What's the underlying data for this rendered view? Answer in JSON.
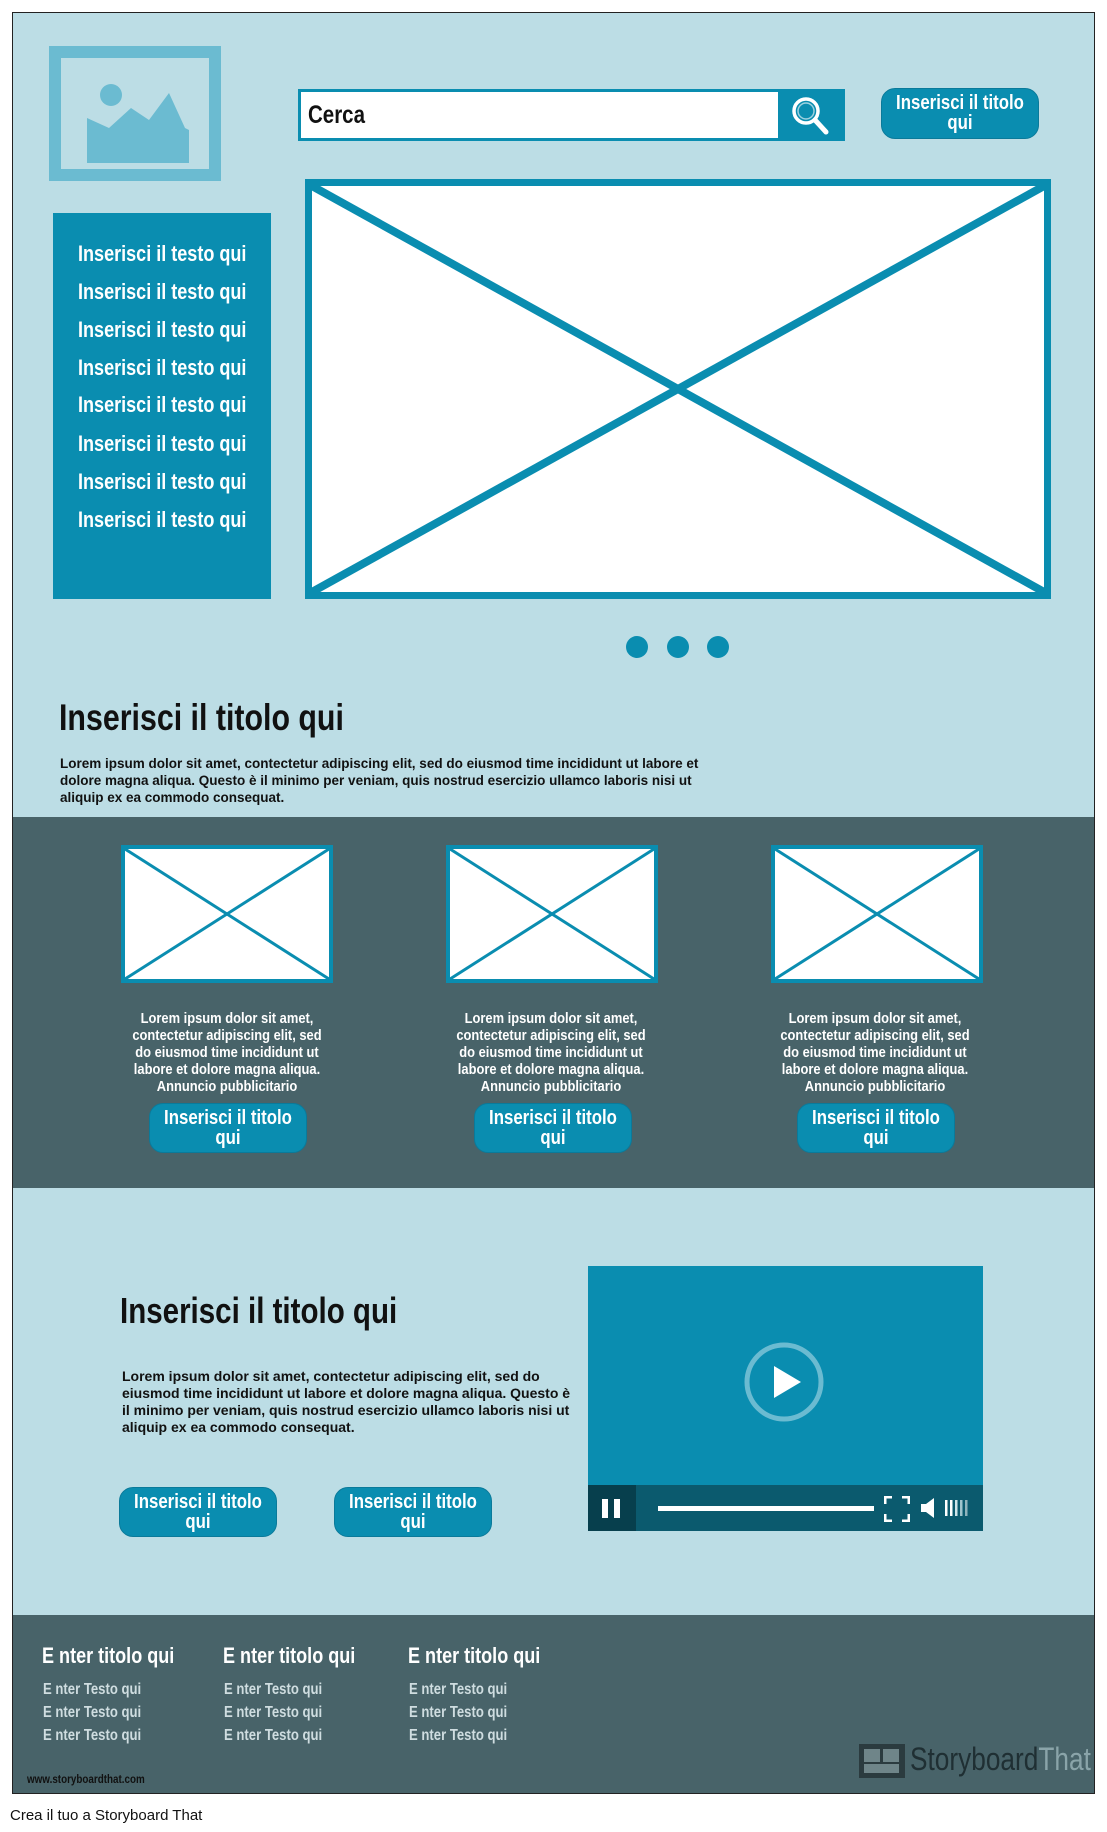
{
  "header": {
    "search_placeholder": "Cerca",
    "title_button": "Inserisci il titolo qui"
  },
  "sidebar": {
    "items": [
      "Inserisci il testo qui",
      "Inserisci il testo qui",
      "Inserisci il testo qui",
      "Inserisci il testo qui",
      "Inserisci il testo qui",
      "Inserisci il testo qui",
      "Inserisci il testo qui",
      "Inserisci il testo qui"
    ]
  },
  "carousel": {
    "dots": 3
  },
  "intro": {
    "title": "Inserisci il titolo qui",
    "text": "Lorem ipsum dolor sit amet, contectetur adipiscing elit, sed do eiusmod time incididunt ut labore et dolore magna aliqua. Questo è il minimo per veniam, quis nostrud esercizio ullamco laboris nisi ut aliquip ex ea commodo consequat."
  },
  "cards": [
    {
      "text": "Lorem ipsum dolor sit amet, contectetur adipiscing elit, sed do eiusmod time incididunt ut labore et dolore magna aliqua. Annuncio pubblicitario",
      "button": "Inserisci il titolo qui"
    },
    {
      "text": "Lorem ipsum dolor sit amet, contectetur adipiscing elit, sed do eiusmod time incididunt ut labore et dolore magna aliqua. Annuncio pubblicitario",
      "button": "Inserisci il titolo qui"
    },
    {
      "text": "Lorem ipsum dolor sit amet, contectetur adipiscing elit, sed do eiusmod time incididunt ut labore et dolore magna aliqua. Annuncio pubblicitario",
      "button": "Inserisci il titolo qui"
    }
  ],
  "feature": {
    "title": "Inserisci il titolo qui",
    "text": "Lorem ipsum dolor sit amet, contectetur adipiscing elit, sed do eiusmod time incididunt ut labore et dolore magna aliqua. Questo è il minimo per veniam, quis nostrud esercizio ullamco laboris nisi ut aliquip ex ea commodo consequat.",
    "button1": "Inserisci il titolo qui",
    "button2": "Inserisci il titolo qui"
  },
  "footer": {
    "columns": [
      {
        "title": "E nter titolo qui",
        "items": [
          "E nter Testo qui",
          "E nter Testo qui",
          "E nter Testo qui"
        ]
      },
      {
        "title": "E nter titolo qui",
        "items": [
          "E nter Testo qui",
          "E nter Testo qui",
          "E nter Testo qui"
        ]
      },
      {
        "title": "E nter titolo qui",
        "items": [
          "E nter Testo qui",
          "E nter Testo qui",
          "E nter Testo qui"
        ]
      }
    ],
    "website": "www.storyboardthat.com",
    "brand_dark": "Storyboard",
    "brand_light": "That"
  },
  "caption": "Crea il tuo a Storyboard That",
  "colors": {
    "accent": "#0a8db0",
    "background": "#bcdde5",
    "dark_band": "#486369"
  }
}
